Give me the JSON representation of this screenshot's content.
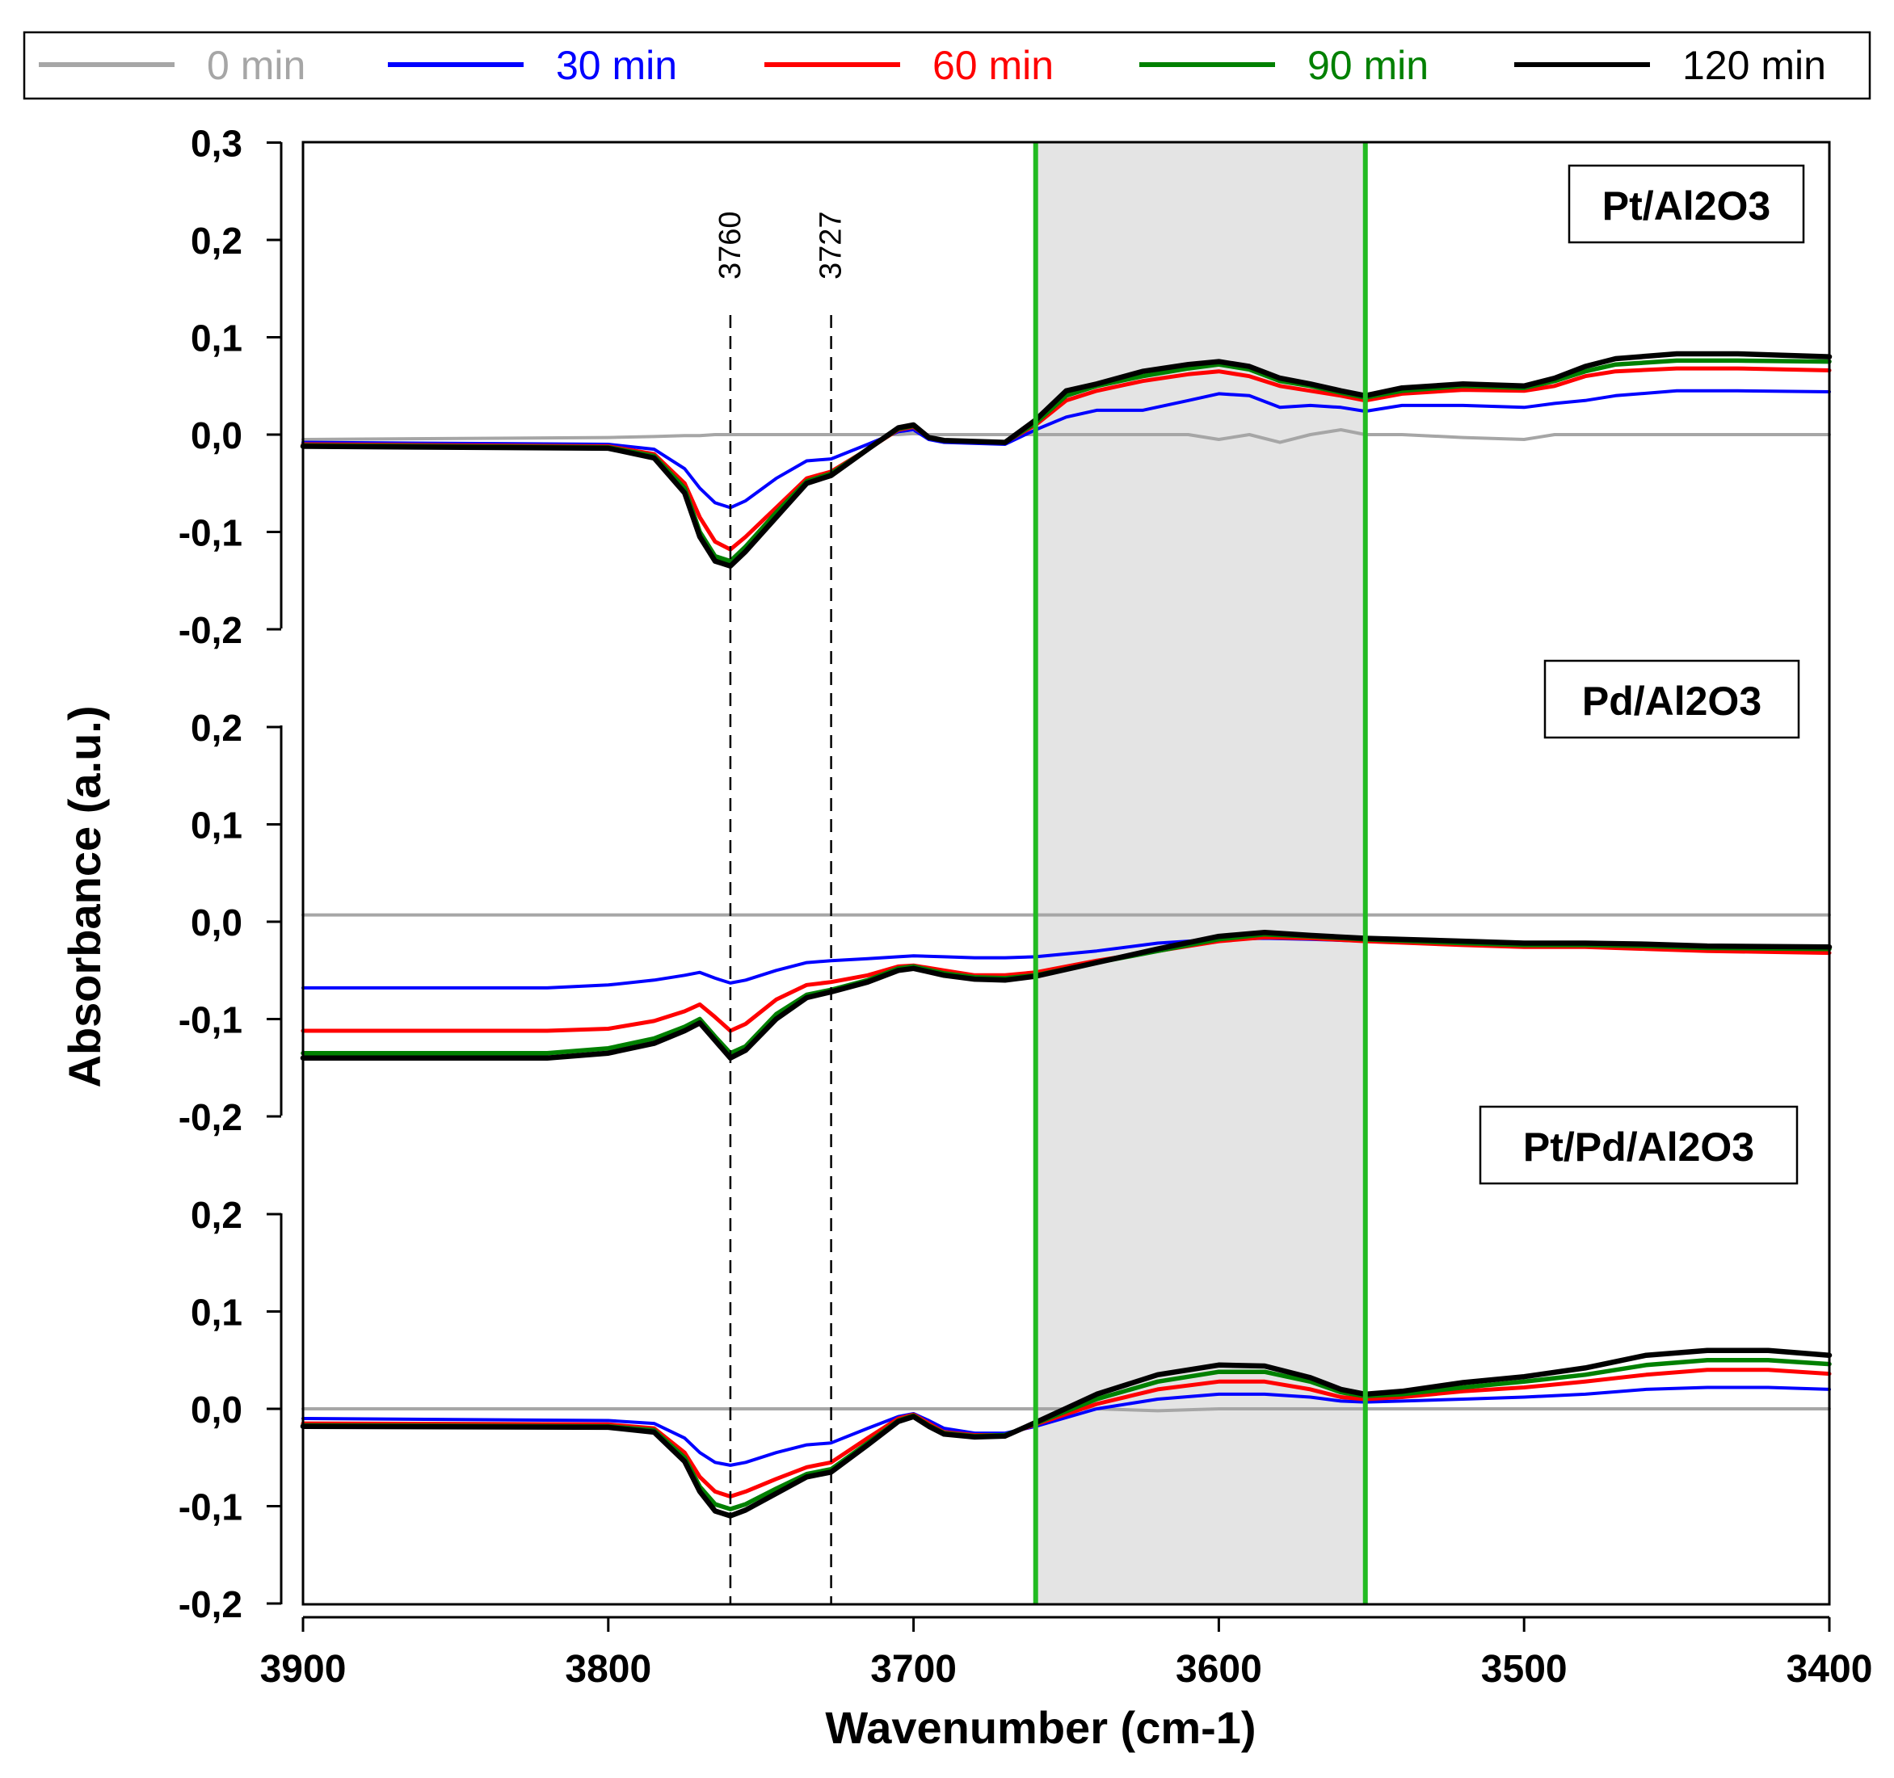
{
  "chart_data": {
    "type": "line",
    "xlabel": "Wavenumber (cm-1)",
    "ylabel": "Absorbance (a.u.)",
    "xlim": [
      3900,
      3400
    ],
    "x_ticks": [
      "3900",
      "3800",
      "3700",
      "3600",
      "3500",
      "3400"
    ],
    "x_tick_values": [
      3900,
      3800,
      3700,
      3600,
      3500,
      3400
    ],
    "legend": [
      {
        "name": "0 min",
        "color": "#a6a6a6"
      },
      {
        "name": "30 min",
        "color": "#0000ff"
      },
      {
        "name": "60 min",
        "color": "#ff0000"
      },
      {
        "name": "90 min",
        "color": "#008000"
      },
      {
        "name": "120 min",
        "color": "#000000"
      }
    ],
    "reference_lines": [
      {
        "x": 3760,
        "label": "3760",
        "style": "dashed"
      },
      {
        "x": 3727,
        "label": "3727",
        "style": "dashed"
      }
    ],
    "highlight_region": {
      "x_from": 3660,
      "x_to": 3552,
      "fill": "#e4e4e4",
      "edge_color": "#22bb22"
    },
    "panels": [
      {
        "label": "Pt/Al2O3",
        "ylim": [
          -0.2,
          0.3
        ],
        "y_ticks": [
          "0,3",
          "0,2",
          "0,1",
          "0,0",
          "-0,1",
          "-0,2"
        ],
        "y_tick_values": [
          0.3,
          0.2,
          0.1,
          0.0,
          -0.1,
          -0.2
        ],
        "x": [
          3900,
          3800,
          3785,
          3775,
          3770,
          3765,
          3760,
          3755,
          3745,
          3735,
          3727,
          3715,
          3705,
          3700,
          3695,
          3690,
          3670,
          3660,
          3650,
          3640,
          3625,
          3610,
          3600,
          3590,
          3580,
          3570,
          3560,
          3552,
          3540,
          3520,
          3500,
          3490,
          3480,
          3470,
          3450,
          3430,
          3400
        ],
        "series": [
          {
            "name": "0 min",
            "values": [
              -0.005,
              -0.003,
              -0.002,
              -0.001,
              -0.001,
              0.0,
              0.0,
              0.0,
              0.0,
              0.0,
              0.0,
              0.0,
              0.0,
              0.001,
              0.0,
              0.0,
              0.0,
              0.0,
              0.0,
              0.0,
              0.0,
              0.0,
              -0.005,
              0.0,
              -0.008,
              0.0,
              0.005,
              0.0,
              0.0,
              -0.003,
              -0.005,
              0.0,
              0.0,
              0.0,
              0.0,
              0.0,
              0.0
            ]
          },
          {
            "name": "30 min",
            "values": [
              -0.008,
              -0.01,
              -0.015,
              -0.035,
              -0.055,
              -0.07,
              -0.075,
              -0.068,
              -0.045,
              -0.027,
              -0.025,
              -0.01,
              0.003,
              0.005,
              -0.005,
              -0.008,
              -0.01,
              0.005,
              0.018,
              0.025,
              0.025,
              0.035,
              0.042,
              0.04,
              0.028,
              0.03,
              0.028,
              0.024,
              0.03,
              0.03,
              0.028,
              0.032,
              0.035,
              0.04,
              0.045,
              0.045,
              0.044
            ]
          },
          {
            "name": "60 min",
            "values": [
              -0.01,
              -0.012,
              -0.02,
              -0.05,
              -0.085,
              -0.11,
              -0.118,
              -0.105,
              -0.075,
              -0.045,
              -0.038,
              -0.015,
              0.005,
              0.008,
              -0.003,
              -0.006,
              -0.008,
              0.01,
              0.035,
              0.045,
              0.055,
              0.062,
              0.065,
              0.06,
              0.05,
              0.045,
              0.04,
              0.035,
              0.042,
              0.046,
              0.045,
              0.05,
              0.06,
              0.065,
              0.068,
              0.068,
              0.066
            ]
          },
          {
            "name": "90 min",
            "values": [
              -0.011,
              -0.013,
              -0.022,
              -0.055,
              -0.1,
              -0.125,
              -0.13,
              -0.115,
              -0.08,
              -0.048,
              -0.04,
              -0.015,
              0.006,
              0.009,
              -0.003,
              -0.006,
              -0.008,
              0.012,
              0.04,
              0.05,
              0.06,
              0.068,
              0.072,
              0.067,
              0.055,
              0.05,
              0.043,
              0.038,
              0.045,
              0.05,
              0.048,
              0.055,
              0.065,
              0.072,
              0.076,
              0.076,
              0.075
            ]
          },
          {
            "name": "120 min",
            "values": [
              -0.012,
              -0.014,
              -0.024,
              -0.06,
              -0.105,
              -0.13,
              -0.135,
              -0.12,
              -0.085,
              -0.05,
              -0.042,
              -0.015,
              0.007,
              0.01,
              -0.003,
              -0.006,
              -0.008,
              0.015,
              0.045,
              0.052,
              0.065,
              0.072,
              0.075,
              0.07,
              0.058,
              0.052,
              0.045,
              0.04,
              0.048,
              0.052,
              0.05,
              0.058,
              0.07,
              0.078,
              0.083,
              0.083,
              0.08
            ]
          }
        ]
      },
      {
        "label": "Pd/Al2O3",
        "ylim": [
          -0.2,
          0.2
        ],
        "y_ticks": [
          "0,2",
          "0,1",
          "0,0",
          "-0,1",
          "-0,2"
        ],
        "y_tick_values": [
          0.2,
          0.1,
          0.0,
          -0.1,
          -0.2
        ],
        "x": [
          3900,
          3820,
          3800,
          3785,
          3775,
          3770,
          3765,
          3760,
          3755,
          3745,
          3735,
          3727,
          3715,
          3705,
          3700,
          3690,
          3680,
          3670,
          3660,
          3640,
          3620,
          3600,
          3585,
          3570,
          3552,
          3520,
          3500,
          3480,
          3460,
          3440,
          3400
        ],
        "series": [
          {
            "name": "0 min",
            "values": [
              0.007,
              0.007,
              0.007,
              0.007,
              0.007,
              0.007,
              0.007,
              0.007,
              0.007,
              0.007,
              0.007,
              0.007,
              0.007,
              0.007,
              0.007,
              0.007,
              0.007,
              0.007,
              0.007,
              0.007,
              0.007,
              0.007,
              0.007,
              0.007,
              0.007,
              0.007,
              0.007,
              0.007,
              0.007,
              0.007,
              0.007
            ]
          },
          {
            "name": "30 min",
            "values": [
              -0.068,
              -0.068,
              -0.065,
              -0.06,
              -0.055,
              -0.052,
              -0.058,
              -0.063,
              -0.06,
              -0.05,
              -0.042,
              -0.04,
              -0.038,
              -0.036,
              -0.035,
              -0.036,
              -0.037,
              -0.037,
              -0.036,
              -0.03,
              -0.022,
              -0.018,
              -0.017,
              -0.018,
              -0.02,
              -0.022,
              -0.024,
              -0.024,
              -0.025,
              -0.026,
              -0.028
            ]
          },
          {
            "name": "60 min",
            "values": [
              -0.112,
              -0.112,
              -0.11,
              -0.102,
              -0.092,
              -0.085,
              -0.098,
              -0.112,
              -0.105,
              -0.08,
              -0.065,
              -0.062,
              -0.055,
              -0.046,
              -0.045,
              -0.05,
              -0.055,
              -0.055,
              -0.052,
              -0.04,
              -0.03,
              -0.02,
              -0.016,
              -0.017,
              -0.02,
              -0.024,
              -0.026,
              -0.026,
              -0.028,
              -0.03,
              -0.032
            ]
          },
          {
            "name": "90 min",
            "values": [
              -0.135,
              -0.135,
              -0.13,
              -0.12,
              -0.108,
              -0.1,
              -0.118,
              -0.135,
              -0.128,
              -0.095,
              -0.075,
              -0.07,
              -0.06,
              -0.048,
              -0.046,
              -0.053,
              -0.057,
              -0.058,
              -0.055,
              -0.042,
              -0.03,
              -0.018,
              -0.013,
              -0.015,
              -0.018,
              -0.022,
              -0.024,
              -0.024,
              -0.025,
              -0.027,
              -0.028
            ]
          },
          {
            "name": "120 min",
            "values": [
              -0.14,
              -0.14,
              -0.135,
              -0.125,
              -0.112,
              -0.104,
              -0.122,
              -0.14,
              -0.132,
              -0.1,
              -0.078,
              -0.072,
              -0.062,
              -0.05,
              -0.048,
              -0.055,
              -0.059,
              -0.06,
              -0.056,
              -0.042,
              -0.028,
              -0.015,
              -0.011,
              -0.014,
              -0.017,
              -0.02,
              -0.022,
              -0.022,
              -0.023,
              -0.025,
              -0.026
            ]
          }
        ]
      },
      {
        "label": "Pt/Pd/Al2O3",
        "ylim": [
          -0.2,
          0.2
        ],
        "y_ticks": [
          "0,2",
          "0,1",
          "0,0",
          "-0,1",
          "-0,2"
        ],
        "y_tick_values": [
          0.2,
          0.1,
          0.0,
          -0.1,
          -0.2
        ],
        "x": [
          3900,
          3800,
          3785,
          3775,
          3770,
          3765,
          3760,
          3755,
          3745,
          3735,
          3727,
          3715,
          3705,
          3700,
          3695,
          3690,
          3680,
          3670,
          3660,
          3640,
          3620,
          3600,
          3585,
          3570,
          3560,
          3552,
          3540,
          3520,
          3500,
          3480,
          3460,
          3440,
          3420,
          3400
        ],
        "series": [
          {
            "name": "0 min",
            "values": [
              0.0,
              0.0,
              0.0,
              0.0,
              0.0,
              0.0,
              0.0,
              0.0,
              0.0,
              0.0,
              0.0,
              0.0,
              0.0,
              0.0,
              0.0,
              0.0,
              0.0,
              0.0,
              0.0,
              0.0,
              -0.002,
              0.0,
              0.0,
              0.0,
              0.0,
              0.0,
              0.0,
              0.0,
              0.0,
              0.0,
              0.0,
              0.0,
              0.0,
              0.0
            ]
          },
          {
            "name": "30 min",
            "values": [
              -0.01,
              -0.012,
              -0.015,
              -0.03,
              -0.045,
              -0.055,
              -0.058,
              -0.055,
              -0.045,
              -0.037,
              -0.035,
              -0.02,
              -0.008,
              -0.005,
              -0.012,
              -0.02,
              -0.025,
              -0.025,
              -0.018,
              0.0,
              0.01,
              0.015,
              0.015,
              0.012,
              0.008,
              0.007,
              0.008,
              0.01,
              0.012,
              0.015,
              0.02,
              0.022,
              0.022,
              0.02
            ]
          },
          {
            "name": "60 min",
            "values": [
              -0.015,
              -0.016,
              -0.02,
              -0.045,
              -0.07,
              -0.085,
              -0.09,
              -0.085,
              -0.072,
              -0.06,
              -0.055,
              -0.03,
              -0.01,
              -0.006,
              -0.015,
              -0.024,
              -0.027,
              -0.027,
              -0.016,
              0.005,
              0.02,
              0.028,
              0.028,
              0.02,
              0.012,
              0.01,
              0.012,
              0.018,
              0.022,
              0.028,
              0.035,
              0.04,
              0.04,
              0.036
            ]
          },
          {
            "name": "90 min",
            "values": [
              -0.017,
              -0.018,
              -0.022,
              -0.05,
              -0.08,
              -0.098,
              -0.103,
              -0.098,
              -0.082,
              -0.067,
              -0.062,
              -0.035,
              -0.012,
              -0.007,
              -0.017,
              -0.025,
              -0.028,
              -0.027,
              -0.015,
              0.01,
              0.028,
              0.038,
              0.038,
              0.028,
              0.017,
              0.013,
              0.015,
              0.022,
              0.028,
              0.035,
              0.045,
              0.05,
              0.05,
              0.046
            ]
          },
          {
            "name": "120 min",
            "values": [
              -0.018,
              -0.019,
              -0.024,
              -0.054,
              -0.085,
              -0.105,
              -0.11,
              -0.104,
              -0.087,
              -0.07,
              -0.065,
              -0.037,
              -0.013,
              -0.008,
              -0.018,
              -0.026,
              -0.029,
              -0.028,
              -0.014,
              0.015,
              0.035,
              0.045,
              0.044,
              0.032,
              0.02,
              0.015,
              0.018,
              0.027,
              0.033,
              0.042,
              0.055,
              0.06,
              0.06,
              0.055
            ]
          }
        ]
      }
    ]
  }
}
